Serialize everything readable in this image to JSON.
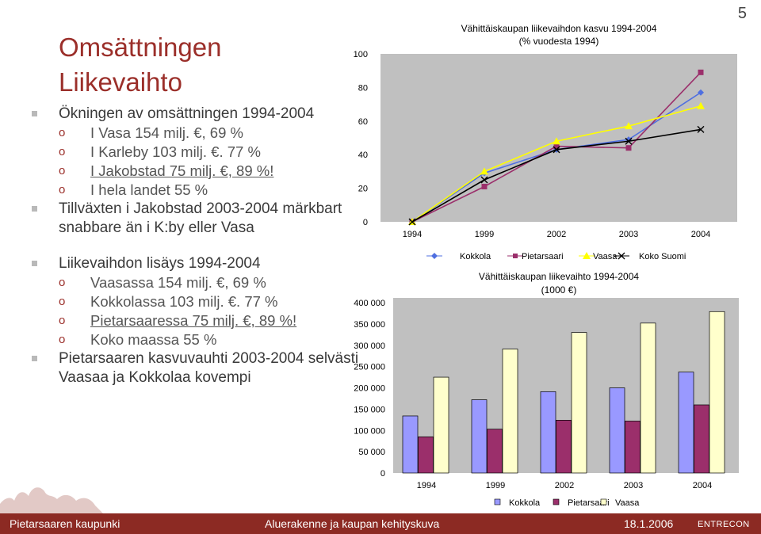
{
  "page_number": "5",
  "title_line1": "Omsättningen",
  "title_line2": "Liikevaihto",
  "bullets": [
    {
      "text": "Ökningen av omsättningen 1994-2004"
    },
    {
      "text": "I Vasa 154 milj. €, 69 %"
    },
    {
      "text": "I Karleby 103 milj. €. 77 %"
    },
    {
      "text": "I Jakobstad 75 milj. €, 89 %!"
    },
    {
      "text": "I hela landet 55 %"
    },
    {
      "text": "Tillväxten i Jakobstad 2003-2004 märkbart snabbare än i K:by eller Vasa"
    },
    {
      "text": "Liikevaihdon lisäys 1994-2004"
    },
    {
      "text": "Vaasassa 154 milj. €, 69 %"
    },
    {
      "text": "Kokkolassa 103 milj. €. 77 %"
    },
    {
      "text": "Pietarsaaressa 75 milj. €, 89 %!"
    },
    {
      "text": "Koko maassa 55 %"
    },
    {
      "text": "Pietarsaaren kasvuvauhti 2003-2004 selvästi Vaasaa ja Kokkolaa kovempi"
    }
  ],
  "footer": {
    "left": "Pietarsaaren kaupunki",
    "center": "Aluerakenne ja kaupan kehityskuva",
    "date": "18.1.2006",
    "logo": "ENTRECON"
  },
  "colors": {
    "kokkola": "#4f6fe0",
    "pietarsaari": "#9b2f6b",
    "vaasa": "#ffff00",
    "koko_suomi": "#000000",
    "vaasa_bar": "#ffffcc",
    "kokkola_bar": "#9999ff",
    "plot_bg": "#c0c0c0",
    "footer": "#8c2a23"
  },
  "chart_data": [
    {
      "type": "line",
      "title": "Vähittäiskaupan liikevaihdon kasvu 1994-2004",
      "subtitle": "(% vuodesta 1994)",
      "categories": [
        "1994",
        "1999",
        "2002",
        "2003",
        "2004"
      ],
      "ylim": [
        0,
        100
      ],
      "yticks": [
        "0",
        "20",
        "40",
        "60",
        "80",
        "100"
      ],
      "legend_position": "bottom",
      "series": [
        {
          "name": "Kokkola",
          "values": [
            0,
            29,
            43,
            49,
            77
          ],
          "marker": "diamond"
        },
        {
          "name": "Pietarsaari",
          "values": [
            0,
            21,
            45,
            44,
            89
          ],
          "marker": "square"
        },
        {
          "name": "Vaasa",
          "values": [
            0,
            30,
            48,
            57,
            69
          ],
          "marker": "triangle"
        },
        {
          "name": "Koko Suomi",
          "values": [
            0,
            25,
            43,
            48,
            55
          ],
          "marker": "x"
        }
      ]
    },
    {
      "type": "bar",
      "title": "Vähittäiskaupan liikevaihto 1994-2004",
      "subtitle": "(1000 €)",
      "categories": [
        "1994",
        "1999",
        "2002",
        "2003",
        "2004"
      ],
      "ylim": [
        0,
        400000
      ],
      "yticks": [
        "0",
        "50 000",
        "100 000",
        "150 000",
        "200 000",
        "250 000",
        "300 000",
        "350 000",
        "400 000"
      ],
      "legend_position": "bottom",
      "series": [
        {
          "name": "Kokkola",
          "values": [
            134000,
            172000,
            191000,
            200000,
            237000
          ]
        },
        {
          "name": "Pietarsaari",
          "values": [
            85000,
            103000,
            124000,
            122000,
            160000
          ]
        },
        {
          "name": "Vaasa",
          "values": [
            225000,
            291000,
            330000,
            352000,
            379000
          ]
        }
      ]
    }
  ]
}
